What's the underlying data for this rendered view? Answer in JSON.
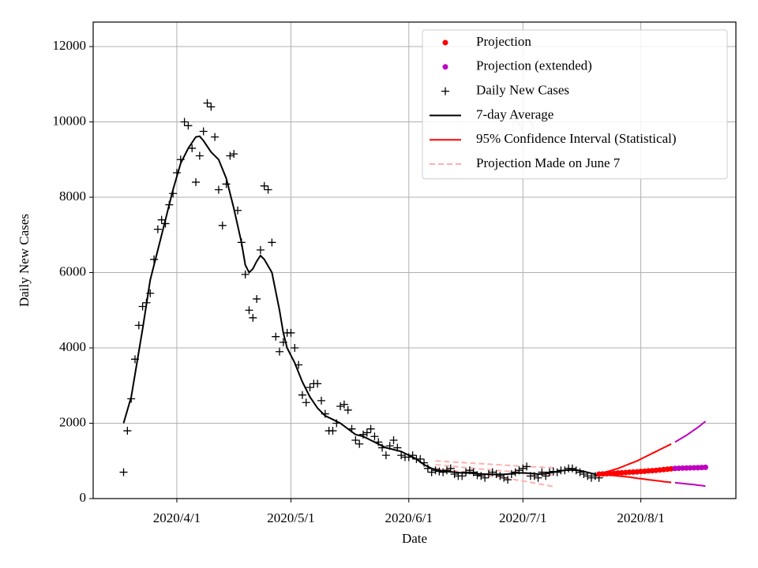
{
  "chart_data": {
    "type": "line",
    "xlabel": "Date",
    "ylabel": "Daily New Cases",
    "annotation": "NY",
    "xlim": [
      "2020/3/10",
      "2020/8/26"
    ],
    "xticks": [
      "2020/4/1",
      "2020/5/1",
      "2020/6/1",
      "2020/7/1",
      "2020/8/1"
    ],
    "ylim": [
      0,
      12650
    ],
    "yticks": [
      0,
      2000,
      4000,
      6000,
      8000,
      10000,
      12000
    ],
    "grid": true,
    "legend": "upper right",
    "series": [
      {
        "name": "Projection",
        "color": "#ff0000",
        "style": "dot",
        "x": [
          "2020/7/21",
          "2020/7/22",
          "2020/7/23",
          "2020/7/24",
          "2020/7/25",
          "2020/7/26",
          "2020/7/27",
          "2020/7/28",
          "2020/7/29",
          "2020/7/30",
          "2020/7/31",
          "2020/8/1",
          "2020/8/2",
          "2020/8/3",
          "2020/8/4",
          "2020/8/5",
          "2020/8/6",
          "2020/8/7",
          "2020/8/8",
          "2020/8/9"
        ],
        "values": [
          650,
          655,
          660,
          665,
          670,
          680,
          685,
          690,
          700,
          705,
          710,
          720,
          725,
          735,
          740,
          750,
          760,
          770,
          780,
          790
        ],
        "upper": [
          650,
          680,
          710,
          740,
          770,
          800,
          840,
          880,
          920,
          960,
          1000,
          1050,
          1100,
          1150,
          1200,
          1250,
          1300,
          1350,
          1400,
          1450
        ],
        "lower": [
          650,
          640,
          630,
          620,
          610,
          600,
          590,
          580,
          570,
          555,
          540,
          530,
          515,
          500,
          490,
          475,
          465,
          450,
          440,
          430
        ]
      },
      {
        "name": "Projection (extended)",
        "color": "#bf00bf",
        "style": "dot",
        "x": [
          "2020/8/10",
          "2020/8/11",
          "2020/8/12",
          "2020/8/13",
          "2020/8/14",
          "2020/8/15",
          "2020/8/16",
          "2020/8/17",
          "2020/8/18"
        ],
        "values": [
          800,
          805,
          810,
          812,
          815,
          818,
          820,
          825,
          830
        ],
        "upper": [
          1500,
          1560,
          1620,
          1680,
          1750,
          1820,
          1890,
          1970,
          2050
        ],
        "lower": [
          420,
          410,
          400,
          390,
          380,
          370,
          355,
          345,
          330
        ]
      },
      {
        "name": "Daily New Cases",
        "color": "#000000",
        "style": "plus",
        "x": [
          "2020/3/18",
          "2020/3/19",
          "2020/3/20",
          "2020/3/21",
          "2020/3/22",
          "2020/3/23",
          "2020/3/24",
          "2020/3/25",
          "2020/3/26",
          "2020/3/27",
          "2020/3/28",
          "2020/3/29",
          "2020/3/30",
          "2020/3/31",
          "2020/4/1",
          "2020/4/2",
          "2020/4/3",
          "2020/4/4",
          "2020/4/5",
          "2020/4/6",
          "2020/4/7",
          "2020/4/8",
          "2020/4/9",
          "2020/4/10",
          "2020/4/11",
          "2020/4/12",
          "2020/4/13",
          "2020/4/14",
          "2020/4/15",
          "2020/4/16",
          "2020/4/17",
          "2020/4/18",
          "2020/4/19",
          "2020/4/20",
          "2020/4/21",
          "2020/4/22",
          "2020/4/23",
          "2020/4/24",
          "2020/4/25",
          "2020/4/26",
          "2020/4/27",
          "2020/4/28",
          "2020/4/29",
          "2020/4/30",
          "2020/5/1",
          "2020/5/2",
          "2020/5/3",
          "2020/5/4",
          "2020/5/5",
          "2020/5/6",
          "2020/5/7",
          "2020/5/8",
          "2020/5/9",
          "2020/5/10",
          "2020/5/11",
          "2020/5/12",
          "2020/5/13",
          "2020/5/14",
          "2020/5/15",
          "2020/5/16",
          "2020/5/17",
          "2020/5/18",
          "2020/5/19",
          "2020/5/20",
          "2020/5/21",
          "2020/5/22",
          "2020/5/23",
          "2020/5/24",
          "2020/5/25",
          "2020/5/26",
          "2020/5/27",
          "2020/5/28",
          "2020/5/29",
          "2020/5/30",
          "2020/5/31",
          "2020/6/1",
          "2020/6/2",
          "2020/6/3",
          "2020/6/4",
          "2020/6/5",
          "2020/6/6",
          "2020/6/7",
          "2020/6/8",
          "2020/6/9",
          "2020/6/10",
          "2020/6/11",
          "2020/6/12",
          "2020/6/13",
          "2020/6/14",
          "2020/6/15",
          "2020/6/16",
          "2020/6/17",
          "2020/6/18",
          "2020/6/19",
          "2020/6/20",
          "2020/6/21",
          "2020/6/22",
          "2020/6/23",
          "2020/6/24",
          "2020/6/25",
          "2020/6/26",
          "2020/6/27",
          "2020/6/28",
          "2020/6/29",
          "2020/6/30",
          "2020/7/1",
          "2020/7/2",
          "2020/7/3",
          "2020/7/4",
          "2020/7/5",
          "2020/7/6",
          "2020/7/7",
          "2020/7/8",
          "2020/7/9",
          "2020/7/10",
          "2020/7/11",
          "2020/7/12",
          "2020/7/13",
          "2020/7/14",
          "2020/7/15",
          "2020/7/16",
          "2020/7/17",
          "2020/7/18",
          "2020/7/19",
          "2020/7/20",
          "2020/7/21"
        ],
        "values": [
          700,
          1800,
          2650,
          3700,
          4600,
          5100,
          5200,
          5450,
          6350,
          7150,
          7400,
          7300,
          7800,
          8100,
          8650,
          9000,
          10000,
          9900,
          9300,
          8400,
          9100,
          9750,
          10500,
          10400,
          9600,
          8200,
          7250,
          8350,
          9100,
          9150,
          7650,
          6800,
          5950,
          5000,
          4800,
          5300,
          6600,
          8300,
          8200,
          6800,
          4300,
          3900,
          4150,
          4400,
          4400,
          4000,
          3550,
          2750,
          2550,
          2950,
          3050,
          3050,
          2600,
          2250,
          1800,
          1800,
          2000,
          2450,
          2500,
          2350,
          1850,
          1550,
          1450,
          1700,
          1750,
          1850,
          1650,
          1500,
          1350,
          1150,
          1400,
          1550,
          1350,
          1150,
          1100,
          1100,
          1150,
          1050,
          1050,
          950,
          800,
          700,
          750,
          720,
          700,
          750,
          800,
          650,
          600,
          600,
          700,
          750,
          700,
          620,
          600,
          550,
          650,
          700,
          650,
          600,
          550,
          500,
          650,
          700,
          750,
          800,
          850,
          600,
          600,
          550,
          700,
          600,
          700,
          720,
          700,
          750,
          750,
          800,
          800,
          750,
          700,
          650,
          600,
          550,
          600,
          550
        ]
      },
      {
        "name": "7-day Average",
        "color": "#000000",
        "style": "line",
        "x": [
          "2020/3/18",
          "2020/3/20",
          "2020/3/21",
          "2020/3/23",
          "2020/3/25",
          "2020/3/27",
          "2020/3/29",
          "2020/3/31",
          "2020/4/2",
          "2020/4/4",
          "2020/4/6",
          "2020/4/7",
          "2020/4/8",
          "2020/4/10",
          "2020/4/12",
          "2020/4/14",
          "2020/4/16",
          "2020/4/18",
          "2020/4/19",
          "2020/4/20",
          "2020/4/21",
          "2020/4/22",
          "2020/4/23",
          "2020/4/24",
          "2020/4/26",
          "2020/4/28",
          "2020/4/29",
          "2020/4/30",
          "2020/5/2",
          "2020/5/4",
          "2020/5/6",
          "2020/5/8",
          "2020/5/10",
          "2020/5/12",
          "2020/5/14",
          "2020/5/16",
          "2020/5/18",
          "2020/5/20",
          "2020/5/22",
          "2020/5/24",
          "2020/5/26",
          "2020/5/28",
          "2020/5/30",
          "2020/6/1",
          "2020/6/3",
          "2020/6/5",
          "2020/6/7",
          "2020/6/9",
          "2020/6/11",
          "2020/6/13",
          "2020/6/15",
          "2020/6/17",
          "2020/6/19",
          "2020/6/21",
          "2020/6/23",
          "2020/6/25",
          "2020/6/27",
          "2020/6/29",
          "2020/7/1",
          "2020/7/3",
          "2020/7/5",
          "2020/7/7",
          "2020/7/9",
          "2020/7/11",
          "2020/7/13",
          "2020/7/15",
          "2020/7/17",
          "2020/7/19",
          "2020/7/21"
        ],
        "values": [
          2000,
          2700,
          3300,
          4500,
          5800,
          6600,
          7400,
          8200,
          8900,
          9300,
          9600,
          9620,
          9500,
          9200,
          9000,
          8500,
          7700,
          6800,
          6200,
          6000,
          6100,
          6300,
          6450,
          6350,
          6000,
          5000,
          4400,
          4000,
          3600,
          3100,
          2700,
          2400,
          2200,
          2100,
          2000,
          1850,
          1700,
          1650,
          1550,
          1450,
          1350,
          1300,
          1250,
          1150,
          1050,
          900,
          800,
          750,
          720,
          700,
          680,
          680,
          660,
          650,
          640,
          640,
          650,
          680,
          680,
          670,
          650,
          660,
          700,
          740,
          760,
          760,
          720,
          670,
          620
        ]
      },
      {
        "name": "95% Confidence Interval (Statistical)",
        "color": "#ff0000",
        "style": "line"
      },
      {
        "name": "Projection Made on June 7",
        "color": "#ffb0b0",
        "style": "dashed",
        "x": [
          "2020/6/8",
          "2020/6/16",
          "2020/6/24",
          "2020/7/2",
          "2020/7/9"
        ],
        "lines": [
          [
            1000,
            950,
            900,
            850,
            820
          ],
          [
            900,
            820,
            750,
            680,
            620
          ],
          [
            800,
            700,
            580,
            450,
            320
          ]
        ]
      }
    ]
  }
}
